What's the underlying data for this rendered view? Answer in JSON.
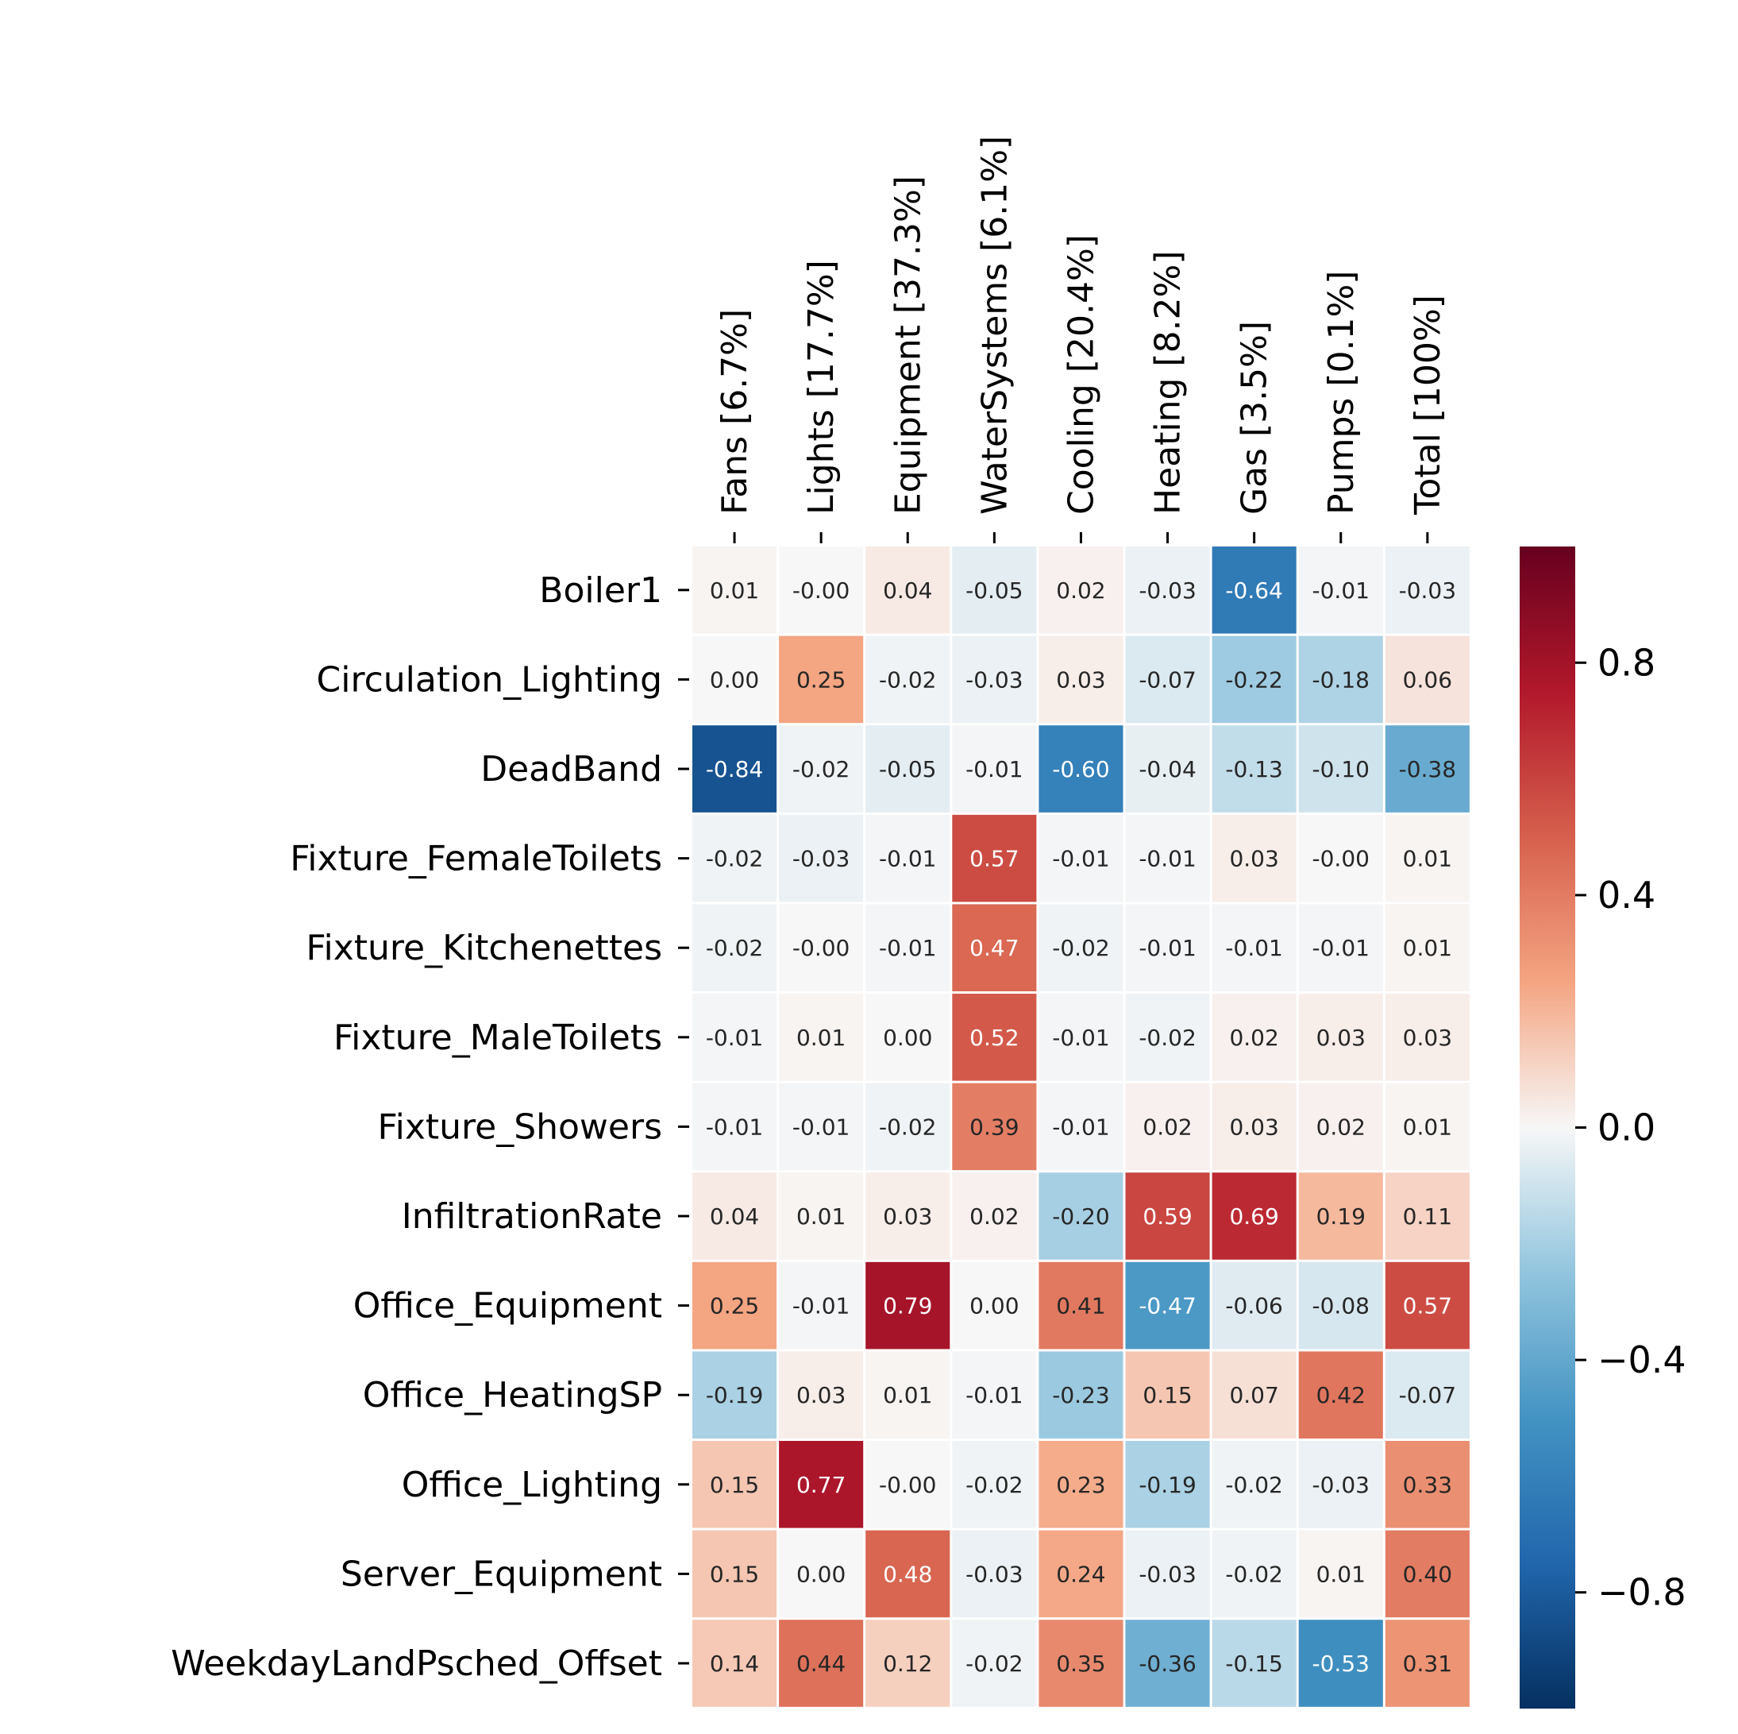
{
  "chart_data": {
    "type": "heatmap",
    "columns": [
      "Fans [6.7%]",
      "Lights [17.7%]",
      "Equipment [37.3%]",
      "WaterSystems [6.1%]",
      "Cooling [20.4%]",
      "Heating [8.2%]",
      "Gas [3.5%]",
      "Pumps [0.1%]",
      "Total [100%]"
    ],
    "rows": [
      "Boiler1",
      "Circulation_Lighting",
      "DeadBand",
      "Fixture_FemaleToilets",
      "Fixture_Kitchenettes",
      "Fixture_MaleToilets",
      "Fixture_Showers",
      "InfiltrationRate",
      "Office_Equipment",
      "Office_HeatingSP",
      "Office_Lighting",
      "Server_Equipment",
      "WeekdayLandPsched_Offset"
    ],
    "values": [
      [
        "0.01",
        "-0.00",
        "0.04",
        "-0.05",
        "0.02",
        "-0.03",
        "-0.64",
        "-0.01",
        "-0.03"
      ],
      [
        "0.00",
        "0.25",
        "-0.02",
        "-0.03",
        "0.03",
        "-0.07",
        "-0.22",
        "-0.18",
        "0.06"
      ],
      [
        "-0.84",
        "-0.02",
        "-0.05",
        "-0.01",
        "-0.60",
        "-0.04",
        "-0.13",
        "-0.10",
        "-0.38"
      ],
      [
        "-0.02",
        "-0.03",
        "-0.01",
        "0.57",
        "-0.01",
        "-0.01",
        "0.03",
        "-0.00",
        "0.01"
      ],
      [
        "-0.02",
        "-0.00",
        "-0.01",
        "0.47",
        "-0.02",
        "-0.01",
        "-0.01",
        "-0.01",
        "0.01"
      ],
      [
        "-0.01",
        "0.01",
        "0.00",
        "0.52",
        "-0.01",
        "-0.02",
        "0.02",
        "0.03",
        "0.03"
      ],
      [
        "-0.01",
        "-0.01",
        "-0.02",
        "0.39",
        "-0.01",
        "0.02",
        "0.03",
        "0.02",
        "0.01"
      ],
      [
        "0.04",
        "0.01",
        "0.03",
        "0.02",
        "-0.20",
        "0.59",
        "0.69",
        "0.19",
        "0.11"
      ],
      [
        "0.25",
        "-0.01",
        "0.79",
        "0.00",
        "0.41",
        "-0.47",
        "-0.06",
        "-0.08",
        "0.57"
      ],
      [
        "-0.19",
        "0.03",
        "0.01",
        "-0.01",
        "-0.23",
        "0.15",
        "0.07",
        "0.42",
        "-0.07"
      ],
      [
        "0.15",
        "0.77",
        "-0.00",
        "-0.02",
        "0.23",
        "-0.19",
        "-0.02",
        "-0.03",
        "0.33"
      ],
      [
        "0.15",
        "0.00",
        "0.48",
        "-0.03",
        "0.24",
        "-0.03",
        "-0.02",
        "0.01",
        "0.40"
      ],
      [
        "0.14",
        "0.44",
        "0.12",
        "-0.02",
        "0.35",
        "-0.36",
        "-0.15",
        "-0.53",
        "0.31"
      ]
    ],
    "colormap": "RdBu_r",
    "vmin": -1,
    "vmax": 1,
    "colorbar_ticks": [
      0.8,
      0.4,
      0.0,
      -0.4,
      -0.8
    ],
    "colorbar_tick_labels": [
      "0.8",
      "0.4",
      "0.0",
      "−0.4",
      "−0.8"
    ],
    "title": "",
    "xlabel": "",
    "ylabel": ""
  }
}
